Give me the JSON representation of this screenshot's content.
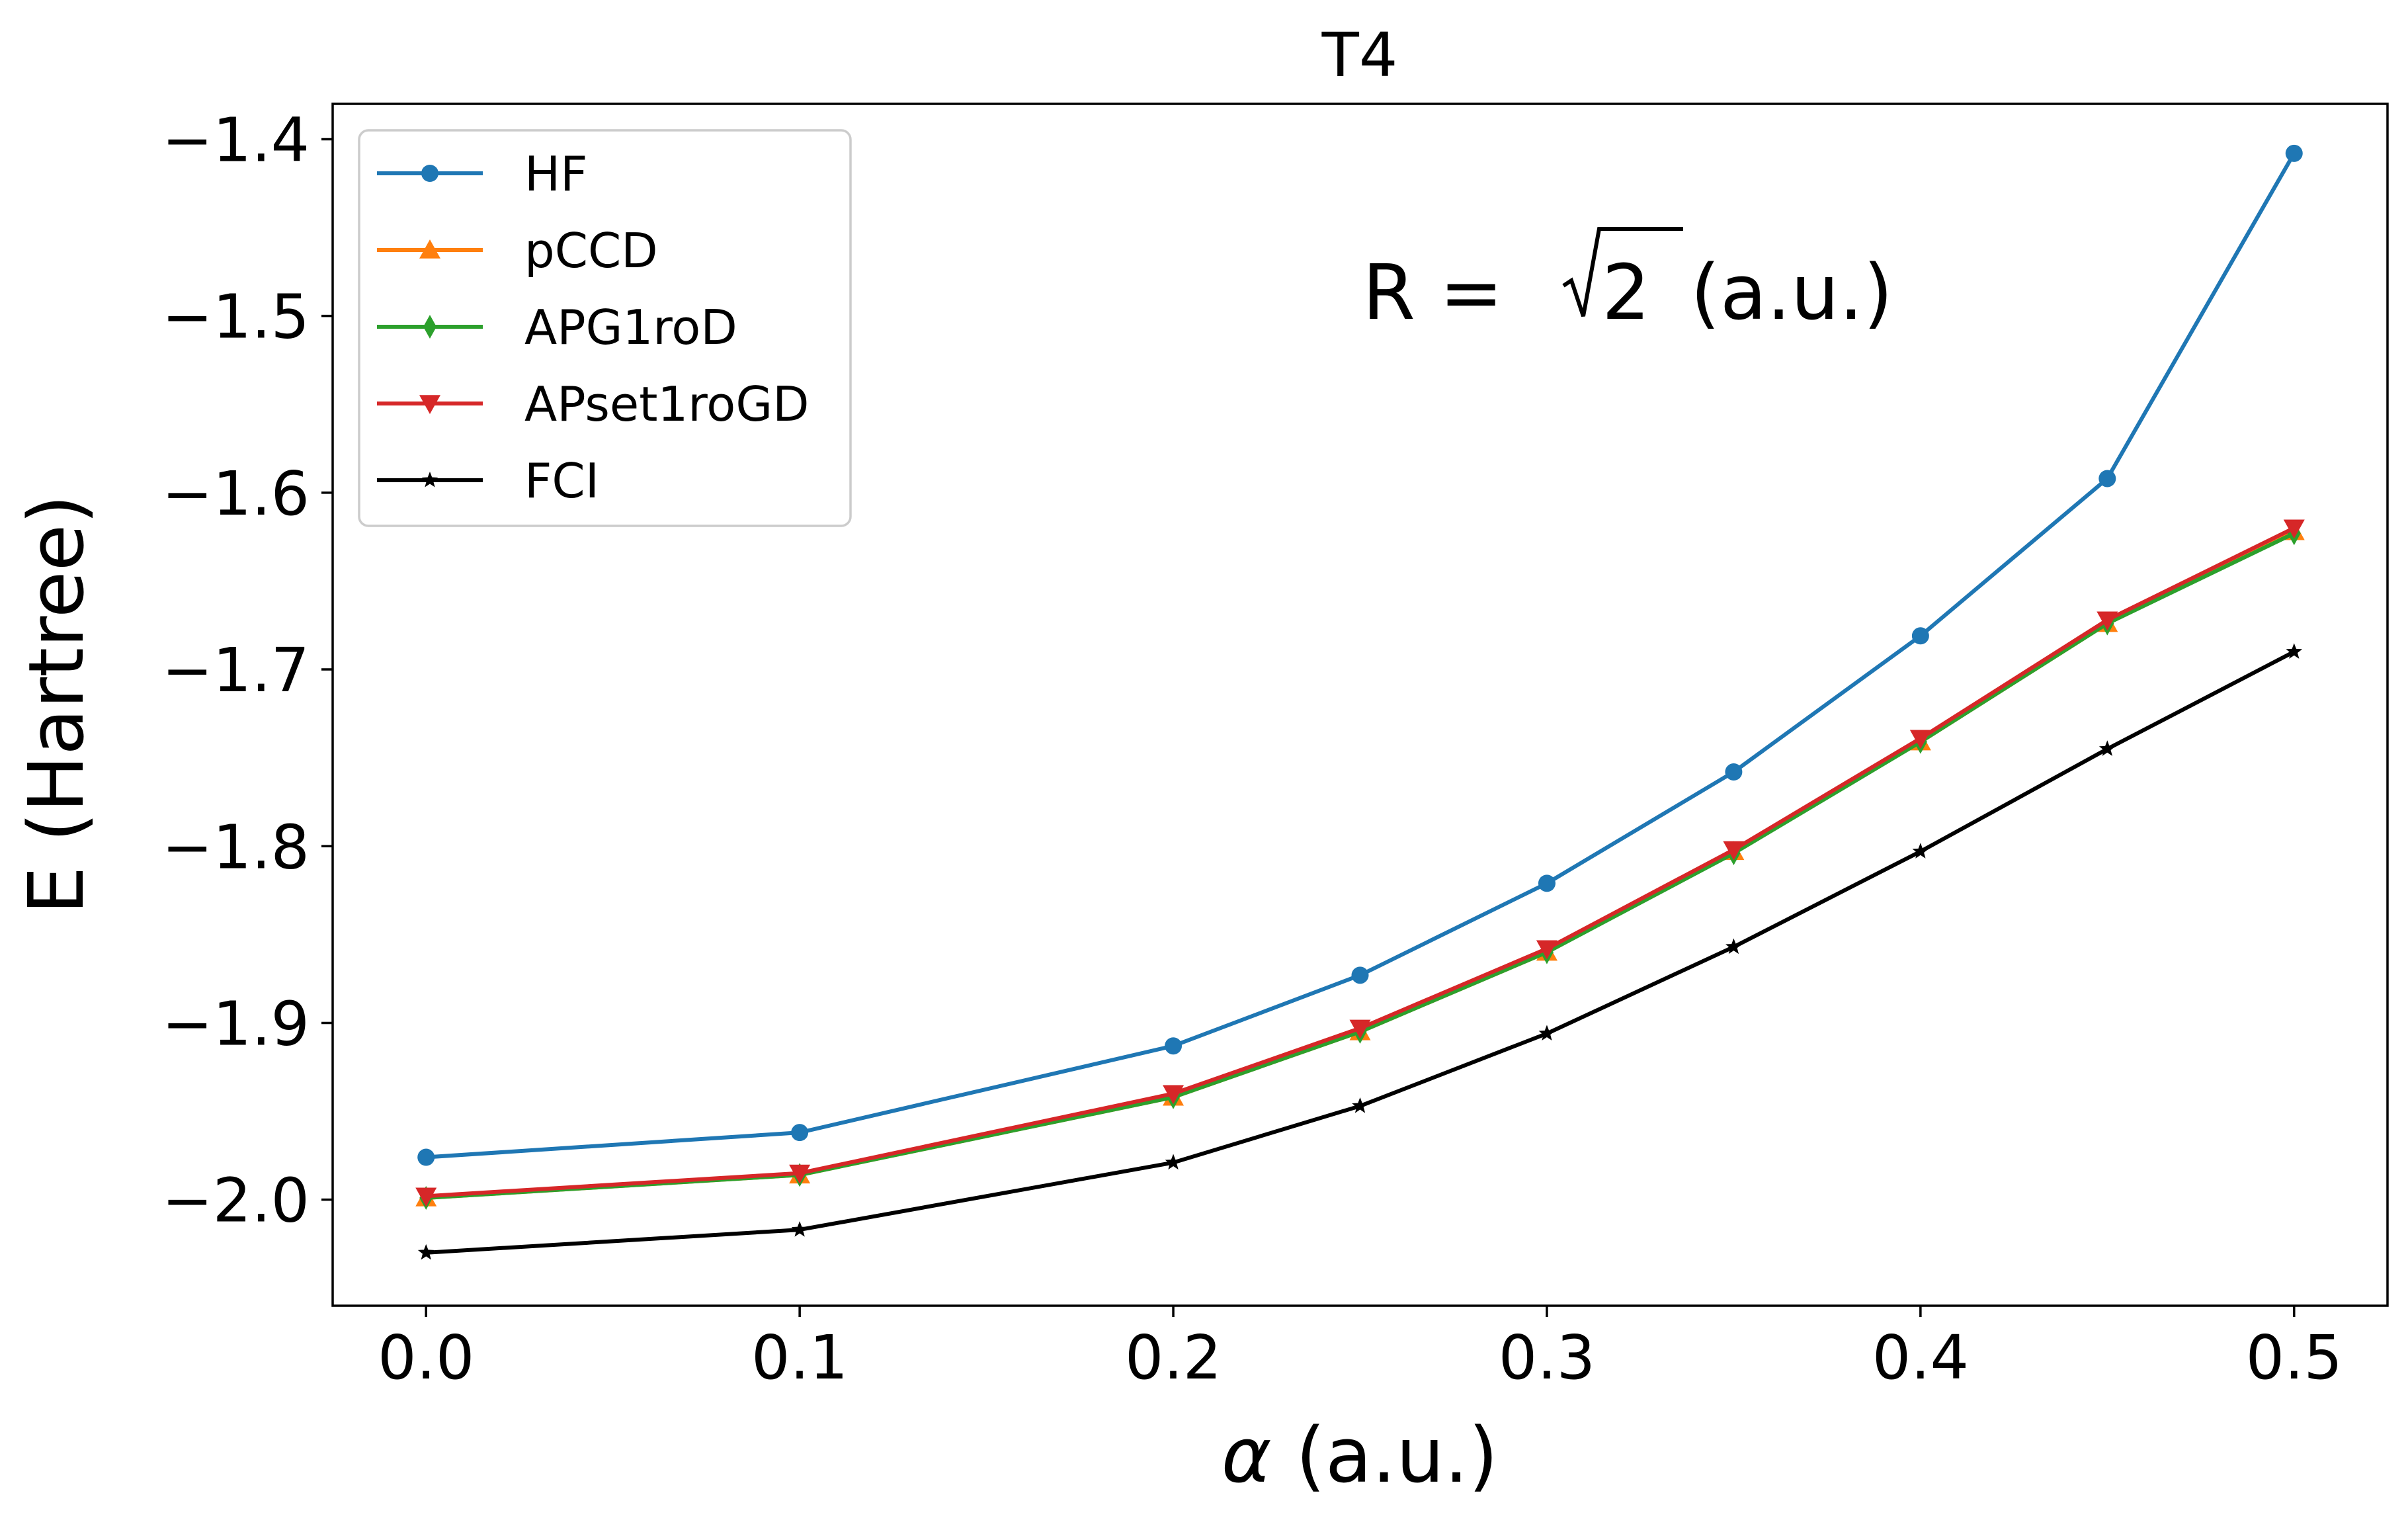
{
  "chart_data": {
    "type": "line",
    "title": "T4",
    "xlabel_symbol": "α",
    "xlabel_rest": " (a.u.)",
    "ylabel": "E (Hartree)",
    "annotation": {
      "prefix": "R = ",
      "radicand": "2",
      "suffix": " (a.u.)"
    },
    "xlim": [
      -0.025,
      0.525
    ],
    "ylim": [
      -2.06,
      -1.38
    ],
    "xticks": [
      0.0,
      0.1,
      0.2,
      0.3,
      0.4,
      0.5
    ],
    "xtick_labels": [
      "0.0",
      "0.1",
      "0.2",
      "0.3",
      "0.4",
      "0.5"
    ],
    "yticks": [
      -2.0,
      -1.9,
      -1.8,
      -1.7,
      -1.6,
      -1.5,
      -1.4
    ],
    "ytick_labels": [
      "−2.0",
      "−1.9",
      "−1.8",
      "−1.7",
      "−1.6",
      "−1.5",
      "−1.4"
    ],
    "legend_position": "upper left",
    "x": [
      0.0,
      0.1,
      0.2,
      0.25,
      0.3,
      0.35,
      0.4,
      0.45,
      0.5
    ],
    "series": [
      {
        "name": "HF",
        "color": "#1f77b4",
        "marker": "circle",
        "values": [
          -1.976,
          -1.962,
          -1.913,
          -1.873,
          -1.821,
          -1.758,
          -1.681,
          -1.592,
          -1.408
        ]
      },
      {
        "name": "pCCD",
        "color": "#ff7f0e",
        "marker": "triangle-up",
        "values": [
          -1.999,
          -1.986,
          -1.942,
          -1.905,
          -1.86,
          -1.803,
          -1.741,
          -1.674,
          -1.622
        ]
      },
      {
        "name": "APG1roD",
        "color": "#2ca02c",
        "marker": "thin-diamond",
        "values": [
          -1.999,
          -1.986,
          -1.942,
          -1.905,
          -1.86,
          -1.804,
          -1.741,
          -1.674,
          -1.623
        ]
      },
      {
        "name": "APset1roGD",
        "color": "#d62728",
        "marker": "triangle-down",
        "values": [
          -1.998,
          -1.985,
          -1.94,
          -1.903,
          -1.858,
          -1.802,
          -1.739,
          -1.672,
          -1.62
        ]
      },
      {
        "name": "FCI",
        "color": "#000000",
        "marker": "star",
        "values": [
          -2.03,
          -2.017,
          -1.979,
          -1.947,
          -1.906,
          -1.857,
          -1.803,
          -1.745,
          -1.69
        ]
      }
    ]
  }
}
